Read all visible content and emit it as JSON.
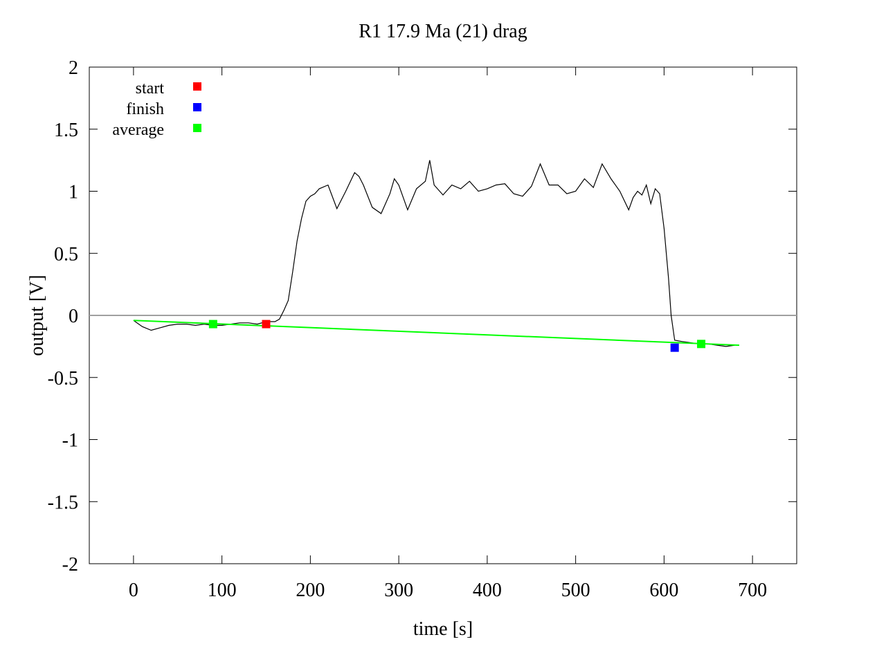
{
  "chart_data": {
    "type": "line",
    "title": "R1 17.9  Ma (21) drag",
    "xlabel": "time [s]",
    "ylabel": "output [V]",
    "xlim": [
      -50,
      750
    ],
    "ylim": [
      -2,
      2
    ],
    "xticks": [
      0,
      100,
      200,
      300,
      400,
      500,
      600,
      700
    ],
    "yticks": [
      -2,
      -1.5,
      -1,
      -0.5,
      0,
      0.5,
      1,
      1.5,
      2
    ],
    "xtick_labels": [
      "0",
      "100",
      "200",
      "300",
      "400",
      "500",
      "600",
      "700"
    ],
    "ytick_labels": [
      "-2",
      "-1.5",
      "-1",
      "-0.5",
      "0",
      "0.5",
      "1",
      "1.5",
      "2"
    ],
    "grid": false,
    "legend_position": "top-left",
    "zero_line": {
      "y": 0,
      "color": "#a0a0a0"
    },
    "series": [
      {
        "style": "line",
        "color": "#000000",
        "x": [
          0,
          10,
          20,
          30,
          40,
          50,
          60,
          70,
          80,
          90,
          100,
          110,
          120,
          130,
          140,
          150,
          160,
          165,
          170,
          175,
          180,
          185,
          190,
          195,
          200,
          205,
          210,
          220,
          230,
          240,
          250,
          255,
          260,
          270,
          280,
          290,
          295,
          300,
          310,
          320,
          330,
          335,
          340,
          350,
          360,
          370,
          380,
          390,
          400,
          410,
          420,
          430,
          440,
          450,
          460,
          470,
          480,
          490,
          500,
          510,
          520,
          530,
          540,
          550,
          560,
          565,
          570,
          575,
          580,
          585,
          590,
          595,
          600,
          605,
          608,
          612,
          620,
          630,
          640,
          650,
          660,
          670,
          680
        ],
        "y": [
          -0.04,
          -0.09,
          -0.12,
          -0.1,
          -0.08,
          -0.07,
          -0.07,
          -0.08,
          -0.07,
          -0.08,
          -0.08,
          -0.07,
          -0.06,
          -0.06,
          -0.07,
          -0.05,
          -0.05,
          -0.03,
          0.04,
          0.12,
          0.35,
          0.6,
          0.78,
          0.92,
          0.96,
          0.98,
          1.02,
          1.05,
          0.86,
          1.0,
          1.15,
          1.12,
          1.05,
          0.87,
          0.82,
          0.98,
          1.1,
          1.05,
          0.85,
          1.02,
          1.08,
          1.25,
          1.05,
          0.97,
          1.05,
          1.02,
          1.08,
          1.0,
          1.02,
          1.05,
          1.06,
          0.98,
          0.96,
          1.04,
          1.22,
          1.05,
          1.05,
          0.98,
          1.0,
          1.1,
          1.03,
          1.22,
          1.1,
          1.0,
          0.85,
          0.95,
          1.0,
          0.97,
          1.05,
          0.9,
          1.02,
          0.98,
          0.7,
          0.3,
          0.0,
          -0.2,
          -0.21,
          -0.22,
          -0.23,
          -0.23,
          -0.24,
          -0.25,
          -0.24
        ]
      },
      {
        "style": "line",
        "color": "#00ff00",
        "x": [
          0,
          685
        ],
        "y": [
          -0.04,
          -0.24
        ]
      }
    ],
    "markers": [
      {
        "name": "start",
        "color": "#ff0000",
        "x": 150,
        "y": -0.07
      },
      {
        "name": "finish",
        "color": "#0000ff",
        "x": 612,
        "y": -0.26
      },
      {
        "name": "average",
        "color": "#00ff00",
        "x": 90,
        "y": -0.07
      },
      {
        "name": "average",
        "color": "#00ff00",
        "x": 642,
        "y": -0.23
      }
    ],
    "legend": [
      {
        "label": "start",
        "color": "#ff0000"
      },
      {
        "label": "finish",
        "color": "#0000ff"
      },
      {
        "label": "average",
        "color": "#00ff00"
      }
    ]
  }
}
